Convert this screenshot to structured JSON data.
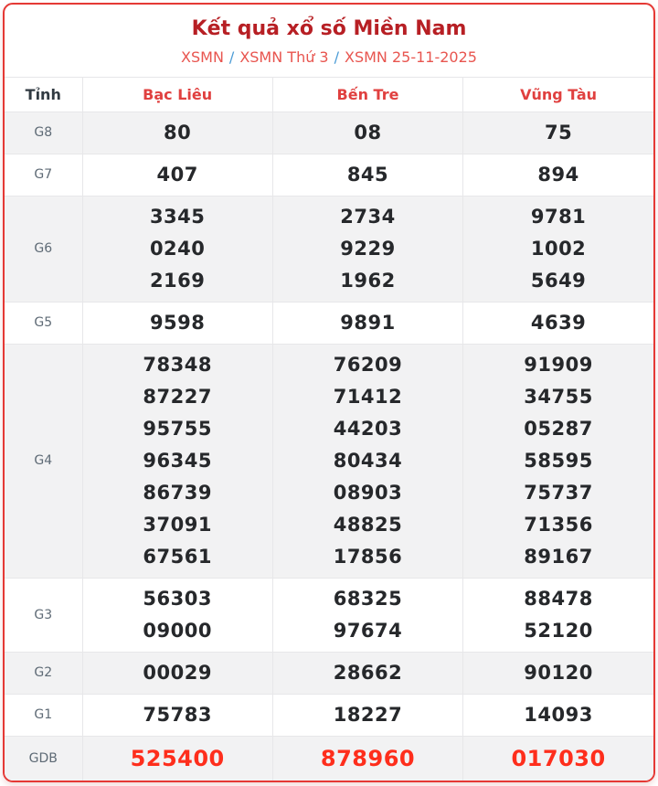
{
  "page": {
    "title": "Kết quả xổ số Miền Nam"
  },
  "breadcrumb": {
    "separator": "/",
    "items": [
      {
        "label": "XSMN"
      },
      {
        "label": "XSMN Thứ 3"
      },
      {
        "label": "XSMN 25-11-2025"
      }
    ]
  },
  "table": {
    "columns": [
      "Tỉnh",
      "Bạc Liêu",
      "Bến Tre",
      "Vũng Tàu"
    ],
    "rows": [
      {
        "label": "G8",
        "highlight": false,
        "cells": [
          [
            "80"
          ],
          [
            "08"
          ],
          [
            "75"
          ]
        ]
      },
      {
        "label": "G7",
        "highlight": false,
        "cells": [
          [
            "407"
          ],
          [
            "845"
          ],
          [
            "894"
          ]
        ]
      },
      {
        "label": "G6",
        "highlight": false,
        "cells": [
          [
            "3345",
            "0240",
            "2169"
          ],
          [
            "2734",
            "9229",
            "1962"
          ],
          [
            "9781",
            "1002",
            "5649"
          ]
        ]
      },
      {
        "label": "G5",
        "highlight": false,
        "cells": [
          [
            "9598"
          ],
          [
            "9891"
          ],
          [
            "4639"
          ]
        ]
      },
      {
        "label": "G4",
        "highlight": false,
        "cells": [
          [
            "78348",
            "87227",
            "95755",
            "96345",
            "86739",
            "37091",
            "67561"
          ],
          [
            "76209",
            "71412",
            "44203",
            "80434",
            "08903",
            "48825",
            "17856"
          ],
          [
            "91909",
            "34755",
            "05287",
            "58595",
            "75737",
            "71356",
            "89167"
          ]
        ]
      },
      {
        "label": "G3",
        "highlight": false,
        "cells": [
          [
            "56303",
            "09000"
          ],
          [
            "68325",
            "97674"
          ],
          [
            "88478",
            "52120"
          ]
        ]
      },
      {
        "label": "G2",
        "highlight": false,
        "cells": [
          [
            "00029"
          ],
          [
            "28662"
          ],
          [
            "90120"
          ]
        ]
      },
      {
        "label": "G1",
        "highlight": false,
        "cells": [
          [
            "75783"
          ],
          [
            "18227"
          ],
          [
            "14093"
          ]
        ]
      },
      {
        "label": "GDB",
        "highlight": true,
        "cells": [
          [
            "525400"
          ],
          [
            "878960"
          ],
          [
            "017030"
          ]
        ]
      }
    ]
  },
  "colors": {
    "title_red": "#b71f24",
    "breadcrumb_red": "#e8554f",
    "separator_blue": "#4a9bd6",
    "province_red": "#e0403f",
    "number_dark": "#26282b",
    "jackpot_red": "#fe2e1c",
    "card_border_red": "#e53935",
    "row_shade_gray": "#f2f2f3"
  }
}
